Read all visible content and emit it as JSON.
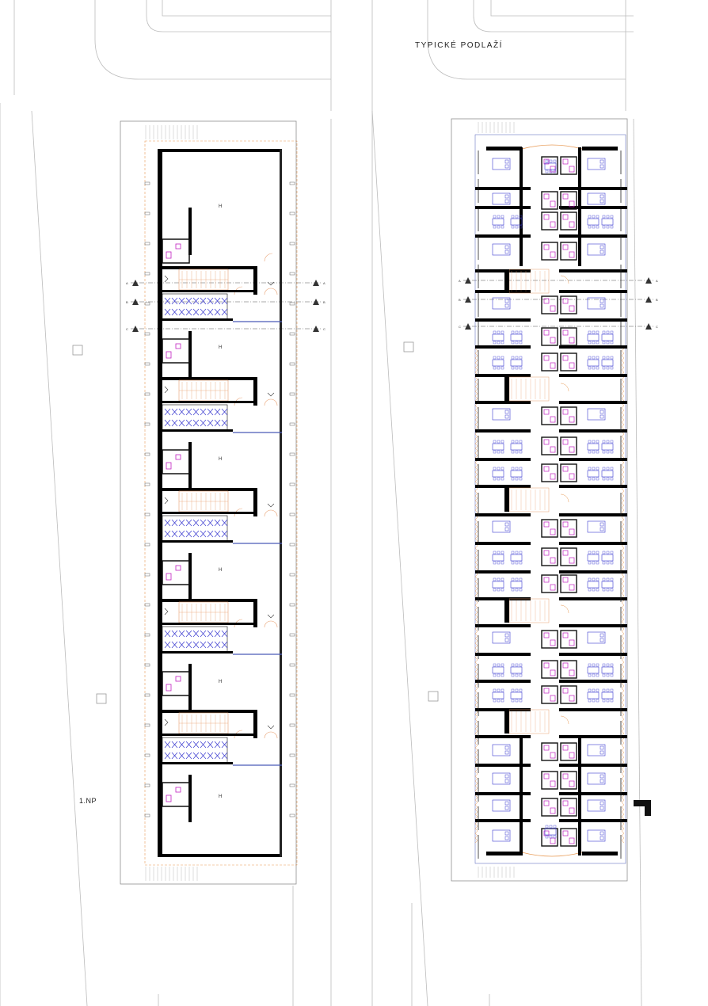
{
  "titles": {
    "typical_floor": "TYPICKÉ PODLAŽÍ",
    "ground_floor": "1.NP"
  },
  "ground_floor": {
    "unit_label": "H",
    "unit_count": 6
  },
  "section_markers": [
    "A",
    "B",
    "C"
  ],
  "colors": {
    "wall": "#000000",
    "context_line": "#b8b8b8",
    "frame_line": "#9a9a9a",
    "stair_orange": "#e8a070",
    "axis_orange": "#e89a55",
    "furniture_blue": "#3a3ad0",
    "bathroom_magenta": "#c020c0",
    "dim_blue": "#4a5ab8"
  },
  "icons": {
    "north_arrow": "north-arrow-icon"
  }
}
